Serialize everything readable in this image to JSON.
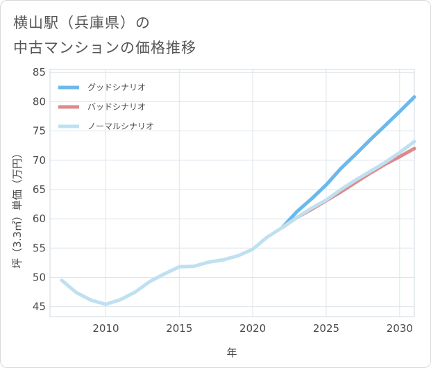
{
  "title": {
    "line1": "横山駅（兵庫県）の",
    "line2": "中古マンションの価格推移"
  },
  "chart_data": {
    "type": "line",
    "xlabel": "年",
    "ylabel": "坪（3.3㎡）単価（万円）",
    "xlim": [
      2006.2,
      2031
    ],
    "ylim": [
      43.3,
      85.5
    ],
    "xticks": [
      2010,
      2015,
      2020,
      2025,
      2030
    ],
    "yticks": [
      45,
      50,
      55,
      60,
      65,
      70,
      75,
      80,
      85
    ],
    "legend_position": "top-left",
    "series": [
      {
        "name": "グッドシナリオ",
        "color": "#6bb8ec",
        "x": [
          2022,
          2023,
          2024,
          2025,
          2026,
          2027,
          2028,
          2029,
          2030,
          2031
        ],
        "y": [
          58.5,
          61.2,
          63.4,
          65.8,
          68.6,
          71.0,
          73.5,
          75.9,
          78.3,
          80.8
        ]
      },
      {
        "name": "バッドシナリオ",
        "color": "#de8a8c",
        "x": [
          2022,
          2023,
          2024,
          2025,
          2026,
          2027,
          2028,
          2029,
          2030,
          2031
        ],
        "y": [
          58.5,
          60.2,
          61.6,
          63.1,
          64.6,
          66.2,
          67.8,
          69.3,
          70.6,
          72.0
        ]
      },
      {
        "name": "ノーマルシナリオ",
        "color": "#bfe0f0",
        "x": [
          2007,
          2008,
          2009,
          2010,
          2011,
          2012,
          2013,
          2014,
          2015,
          2016,
          2017,
          2018,
          2019,
          2020,
          2021,
          2022,
          2023,
          2024,
          2025,
          2026,
          2027,
          2028,
          2029,
          2030,
          2031
        ],
        "y": [
          49.5,
          47.4,
          46.1,
          45.4,
          46.2,
          47.5,
          49.3,
          50.6,
          51.8,
          51.9,
          52.6,
          53.0,
          53.7,
          54.8,
          56.9,
          58.5,
          60.2,
          61.8,
          63.2,
          65.0,
          66.6,
          68.1,
          69.6,
          71.3,
          73.2
        ]
      }
    ]
  }
}
